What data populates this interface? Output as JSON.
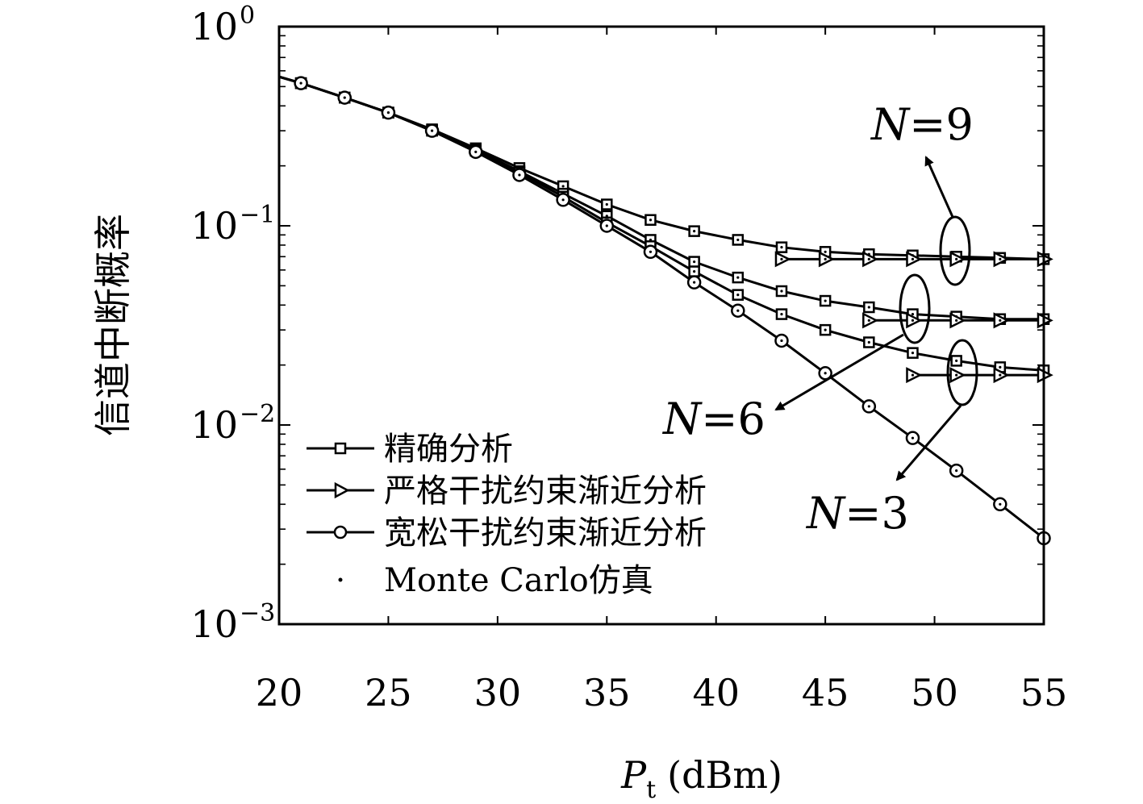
{
  "chart_data": {
    "type": "line",
    "title": "",
    "xlabel": "P",
    "xlabel_sub": "t",
    "xlabel_unit": "(dBm)",
    "ylabel": "信道中断概率",
    "xlim": [
      20,
      55
    ],
    "ylim": [
      0.001,
      1
    ],
    "yscale": "log",
    "x_ticks": [
      20,
      25,
      30,
      35,
      40,
      45,
      50,
      55
    ],
    "x_tick_labels": [
      "20",
      "25",
      "30",
      "35",
      "40",
      "45",
      "50",
      "55"
    ],
    "y_ticks": [
      1,
      0.1,
      0.01,
      0.001
    ],
    "y_tick_labels": [
      {
        "base": "10",
        "exp": "0"
      },
      {
        "base": "10",
        "exp": "−1"
      },
      {
        "base": "10",
        "exp": "−2"
      },
      {
        "base": "10",
        "exp": "−3"
      }
    ],
    "grid": false,
    "legend_position": "bottom-left",
    "legend": [
      {
        "label": "精确分析",
        "marker": "square"
      },
      {
        "label": "严格干扰约束渐近分析",
        "marker": "triangle-right"
      },
      {
        "label": "宽松干扰约束渐近分析",
        "marker": "circle"
      },
      {
        "label": "Monte Carlo仿真",
        "marker": "dot"
      }
    ],
    "series": [
      {
        "group": "N=9",
        "marker": "square",
        "x": [
          21,
          23,
          25,
          27,
          29,
          31,
          33,
          35,
          37,
          39,
          41,
          43,
          45,
          47,
          49,
          51,
          53,
          55
        ],
        "y": [
          0.52,
          0.44,
          0.37,
          0.305,
          0.245,
          0.195,
          0.158,
          0.128,
          0.107,
          0.094,
          0.085,
          0.078,
          0.074,
          0.072,
          0.071,
          0.07,
          0.069,
          0.068
        ]
      },
      {
        "group": "N=9",
        "marker": "triangle-right",
        "x": [
          43,
          45,
          47,
          49,
          51,
          53,
          55
        ],
        "y": [
          0.068,
          0.068,
          0.068,
          0.068,
          0.068,
          0.068,
          0.068
        ]
      },
      {
        "group": "N=6",
        "marker": "square",
        "x": [
          21,
          23,
          25,
          27,
          29,
          31,
          33,
          35,
          37,
          39,
          41,
          43,
          45,
          47,
          49,
          51,
          53,
          55
        ],
        "y": [
          0.52,
          0.44,
          0.37,
          0.302,
          0.24,
          0.188,
          0.145,
          0.112,
          0.085,
          0.066,
          0.055,
          0.047,
          0.042,
          0.039,
          0.036,
          0.035,
          0.034,
          0.034
        ]
      },
      {
        "group": "N=6",
        "marker": "triangle-right",
        "x": [
          47,
          49,
          51,
          53,
          55
        ],
        "y": [
          0.0335,
          0.0335,
          0.0335,
          0.0335,
          0.0335
        ]
      },
      {
        "group": "N=3",
        "marker": "square",
        "x": [
          21,
          23,
          25,
          27,
          29,
          31,
          33,
          35,
          37,
          39,
          41,
          43,
          45,
          47,
          49,
          51,
          53,
          55
        ],
        "y": [
          0.52,
          0.44,
          0.37,
          0.3,
          0.238,
          0.185,
          0.14,
          0.104,
          0.079,
          0.059,
          0.045,
          0.036,
          0.03,
          0.026,
          0.023,
          0.021,
          0.0195,
          0.0188
        ]
      },
      {
        "group": "N=3",
        "marker": "triangle-right",
        "x": [
          49,
          51,
          53,
          55
        ],
        "y": [
          0.0178,
          0.0178,
          0.0178,
          0.0178
        ]
      },
      {
        "group": "relaxed",
        "marker": "circle",
        "x": [
          21,
          23,
          25,
          27,
          29,
          31,
          33,
          35,
          37,
          39,
          41,
          43,
          45,
          47,
          49,
          51,
          53,
          55
        ],
        "y": [
          0.52,
          0.44,
          0.37,
          0.3,
          0.235,
          0.18,
          0.135,
          0.1,
          0.074,
          0.052,
          0.0375,
          0.0265,
          0.0182,
          0.0124,
          0.0086,
          0.0059,
          0.004,
          0.0027
        ]
      }
    ],
    "annotations": [
      {
        "n_label": "N",
        "value_label": "=9"
      },
      {
        "n_label": "N",
        "value_label": "=6"
      },
      {
        "n_label": "N",
        "value_label": "=3"
      }
    ]
  }
}
